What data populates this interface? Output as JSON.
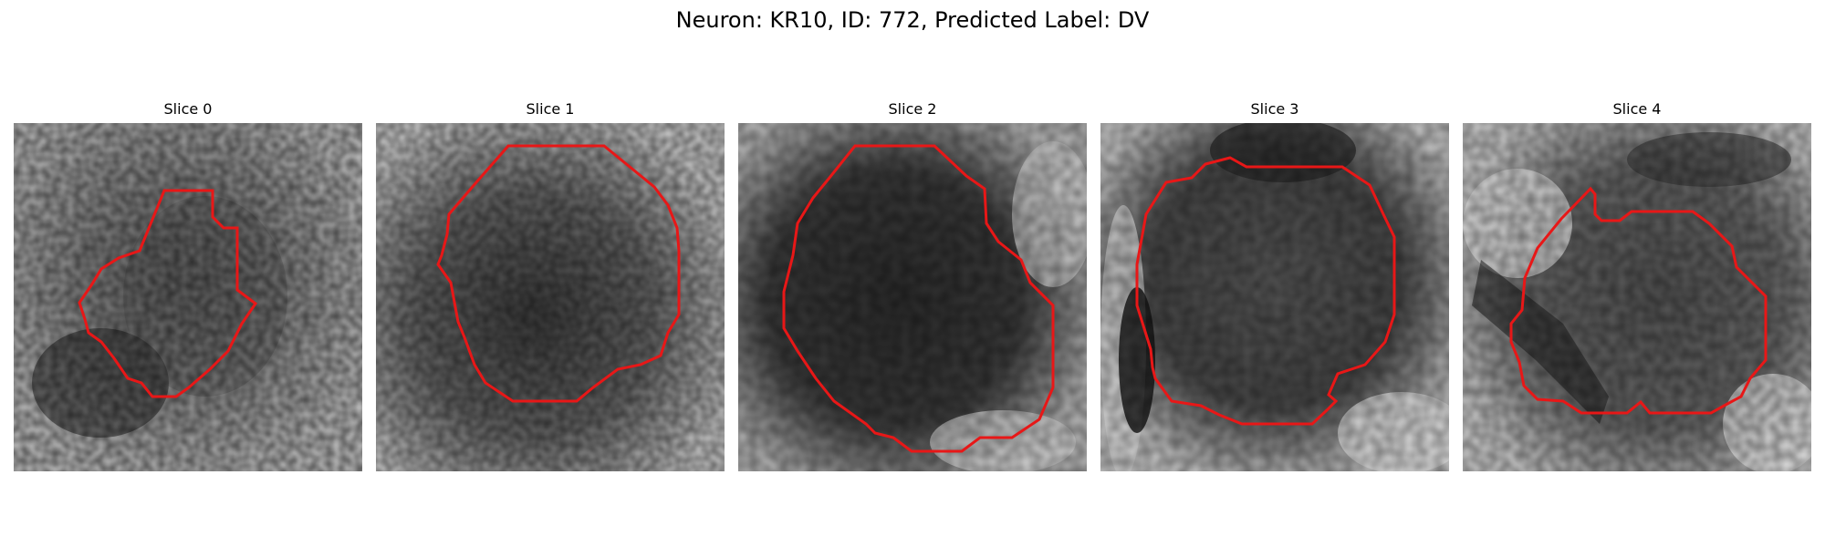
{
  "figure": {
    "title": "Neuron: KR10, ID: 772, Predicted Label: DV"
  },
  "panels": [
    {
      "title": "Slice 0"
    },
    {
      "title": "Slice 1"
    },
    {
      "title": "Slice 2"
    },
    {
      "title": "Slice 3"
    },
    {
      "title": "Slice 4"
    }
  ],
  "colors": {
    "outline": "#e81717",
    "image_colormap": "gray"
  }
}
